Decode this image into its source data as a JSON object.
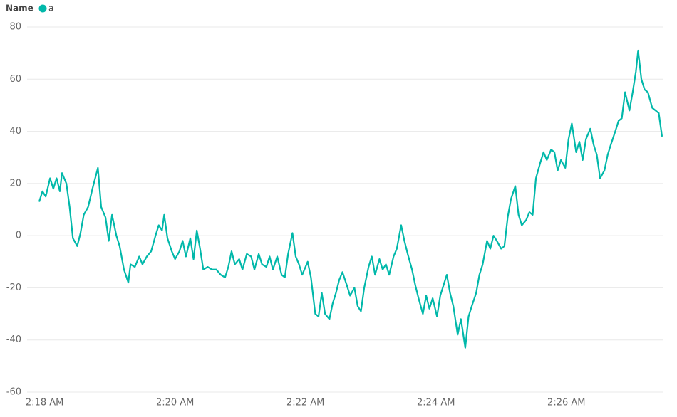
{
  "chart_data": {
    "type": "line",
    "legend_title": "Name",
    "x": [
      "2:17:55",
      "2:17:58",
      "2:18:01",
      "2:18:05",
      "2:18:08",
      "2:18:11",
      "2:18:14",
      "2:18:16",
      "2:18:20",
      "2:18:23",
      "2:18:26",
      "2:18:30",
      "2:18:33",
      "2:18:36",
      "2:18:40",
      "2:18:44",
      "2:18:49",
      "2:18:52",
      "2:18:56",
      "2:18:59",
      "2:19:02",
      "2:19:06",
      "2:19:09",
      "2:19:13",
      "2:19:17",
      "2:19:19",
      "2:19:23",
      "2:19:27",
      "2:19:30",
      "2:19:34",
      "2:19:38",
      "2:19:42",
      "2:19:45",
      "2:19:48",
      "2:19:50",
      "2:19:53",
      "2:19:57",
      "2:20:00",
      "2:20:04",
      "2:20:07",
      "2:20:10",
      "2:20:14",
      "2:20:17",
      "2:20:20",
      "2:20:23",
      "2:20:26",
      "2:20:30",
      "2:20:34",
      "2:20:38",
      "2:20:42",
      "2:20:46",
      "2:20:49",
      "2:20:52",
      "2:20:55",
      "2:20:59",
      "2:21:02",
      "2:21:06",
      "2:21:10",
      "2:21:13",
      "2:21:17",
      "2:21:20",
      "2:21:24",
      "2:21:27",
      "2:21:30",
      "2:21:34",
      "2:21:38",
      "2:21:41",
      "2:21:44",
      "2:21:48",
      "2:21:51",
      "2:21:54",
      "2:21:57",
      "2:22:02",
      "2:22:05",
      "2:22:09",
      "2:22:12",
      "2:22:15",
      "2:22:18",
      "2:22:22",
      "2:22:25",
      "2:22:28",
      "2:22:31",
      "2:22:34",
      "2:22:38",
      "2:22:41",
      "2:22:45",
      "2:22:48",
      "2:22:51",
      "2:22:54",
      "2:22:58",
      "2:23:01",
      "2:23:04",
      "2:23:08",
      "2:23:11",
      "2:23:14",
      "2:23:17",
      "2:23:21",
      "2:23:24",
      "2:23:28",
      "2:23:31",
      "2:23:34",
      "2:23:38",
      "2:23:41",
      "2:23:44",
      "2:23:48",
      "2:23:51",
      "2:23:54",
      "2:23:57",
      "2:24:01",
      "2:24:04",
      "2:24:07",
      "2:24:10",
      "2:24:13",
      "2:24:16",
      "2:24:20",
      "2:24:23",
      "2:24:27",
      "2:24:30",
      "2:24:33",
      "2:24:37",
      "2:24:40",
      "2:24:43",
      "2:24:47",
      "2:24:50",
      "2:24:53",
      "2:24:56",
      "2:25:00",
      "2:25:03",
      "2:25:06",
      "2:25:09",
      "2:25:13",
      "2:25:16",
      "2:25:19",
      "2:25:23",
      "2:25:26",
      "2:25:29",
      "2:25:32",
      "2:25:36",
      "2:25:39",
      "2:25:42",
      "2:25:46",
      "2:25:49",
      "2:25:52",
      "2:25:55",
      "2:25:59",
      "2:26:02",
      "2:26:05",
      "2:26:09",
      "2:26:12",
      "2:26:15",
      "2:26:18",
      "2:26:22",
      "2:26:25",
      "2:26:28",
      "2:26:31",
      "2:26:35",
      "2:26:38",
      "2:26:41",
      "2:26:45",
      "2:26:48",
      "2:26:51",
      "2:26:54",
      "2:26:58",
      "2:27:01",
      "2:27:04",
      "2:27:06",
      "2:27:09",
      "2:27:12",
      "2:27:15",
      "2:27:19",
      "2:27:22",
      "2:27:25",
      "2:27:28"
    ],
    "series": [
      {
        "name": "a",
        "color": "#01b8aa",
        "values": [
          13,
          17,
          15,
          22,
          18,
          22,
          17,
          24,
          20,
          11,
          -1,
          -4,
          1,
          8,
          11,
          18,
          26,
          11,
          7,
          -2,
          8,
          0,
          -4,
          -13,
          -18,
          -11,
          -12,
          -8,
          -11,
          -8,
          -6,
          0,
          4,
          2,
          8,
          -1,
          -6,
          -9,
          -6,
          -2,
          -8,
          -1,
          -9,
          2,
          -5,
          -13,
          -12,
          -13,
          -13,
          -15,
          -16,
          -12,
          -6,
          -11,
          -9,
          -13,
          -7,
          -8,
          -13,
          -7,
          -11,
          -12,
          -8,
          -13,
          -8,
          -15,
          -16,
          -7,
          1,
          -8,
          -11,
          -15,
          -10,
          -16,
          -30,
          -31,
          -22,
          -30,
          -32,
          -26,
          -22,
          -17,
          -14,
          -19,
          -23,
          -20,
          -27,
          -29,
          -20,
          -12,
          -8,
          -15,
          -9,
          -13,
          -11,
          -15,
          -8,
          -5,
          4,
          -2,
          -7,
          -13,
          -19,
          -24,
          -30,
          -23,
          -28,
          -24,
          -31,
          -23,
          -19,
          -15,
          -22,
          -27,
          -38,
          -32,
          -43,
          -31,
          -27,
          -22,
          -15,
          -11,
          -2,
          -5,
          0,
          -2,
          -5,
          -4,
          7,
          14,
          19,
          8,
          4,
          6,
          9,
          8,
          22,
          28,
          32,
          29,
          33,
          32,
          25,
          29,
          26,
          37,
          43,
          32,
          36,
          29,
          37,
          41,
          35,
          31,
          22,
          25,
          31,
          35,
          40,
          44,
          45,
          55,
          48,
          55,
          63,
          71,
          60,
          56,
          55,
          49,
          48,
          47,
          38
        ]
      }
    ],
    "xlim": [
      "2:17:55",
      "2:27:28"
    ],
    "xticks": [
      {
        "value": "2:18:00",
        "label": "2:18 AM"
      },
      {
        "value": "2:20:00",
        "label": "2:20 AM"
      },
      {
        "value": "2:22:00",
        "label": "2:22 AM"
      },
      {
        "value": "2:24:00",
        "label": "2:24 AM"
      },
      {
        "value": "2:26:00",
        "label": "2:26 AM"
      }
    ],
    "ylim": [
      -60,
      80
    ],
    "yticks": [
      -60,
      -40,
      -20,
      0,
      20,
      40,
      60,
      80
    ],
    "grid": true
  }
}
